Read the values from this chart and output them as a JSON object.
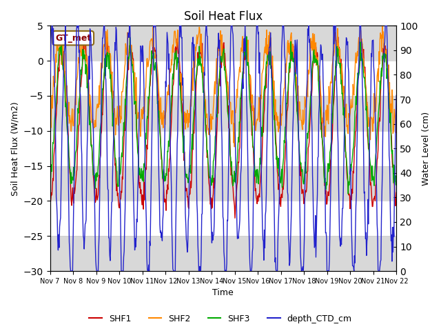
{
  "title": "Soil Heat Flux",
  "ylabel_left": "Soil Heat Flux (W/m2)",
  "ylabel_right": "Water Level (cm)",
  "xlabel": "Time",
  "ylim_left": [
    -30,
    5
  ],
  "ylim_right": [
    0,
    100
  ],
  "yticks_left": [
    -30,
    -25,
    -20,
    -15,
    -10,
    -5,
    0,
    5
  ],
  "yticks_right": [
    0,
    10,
    20,
    30,
    40,
    50,
    60,
    70,
    80,
    90,
    100
  ],
  "x_tick_labels": [
    "Nov 7",
    "Nov 8",
    "Nov 9",
    "Nov 10",
    "Nov 11",
    "Nov 12",
    "Nov 13",
    "Nov 14",
    "Nov 15",
    "Nov 16",
    "Nov 17",
    "Nov 18",
    "Nov 19",
    "Nov 20",
    "Nov 21",
    "Nov 22"
  ],
  "annotation_text": "GT_met",
  "annotation_color": "#8B0000",
  "background_color": "#e0e0e0",
  "plot_bg_color": "#ffffff",
  "shf1_color": "#cc0000",
  "shf2_color": "#ff8800",
  "shf3_color": "#00aa00",
  "ctd_color": "#2222cc",
  "line_width": 1.0,
  "gray_band_color": "#d8d8d8",
  "white_band_color": "#ffffff"
}
